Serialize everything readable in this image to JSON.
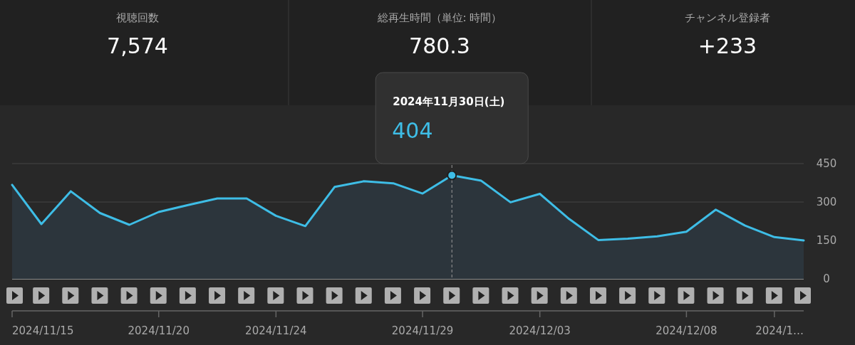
{
  "chart_data": {
    "type": "area",
    "color": "#3ebde6",
    "x": [
      "2024-11-15",
      "2024-11-16",
      "2024-11-17",
      "2024-11-18",
      "2024-11-19",
      "2024-11-20",
      "2024-11-21",
      "2024-11-22",
      "2024-11-23",
      "2024-11-24",
      "2024-11-25",
      "2024-11-26",
      "2024-11-27",
      "2024-11-28",
      "2024-11-29",
      "2024-11-30",
      "2024-12-01",
      "2024-12-02",
      "2024-12-03",
      "2024-12-04",
      "2024-12-05",
      "2024-12-06",
      "2024-12-07",
      "2024-12-08",
      "2024-12-09",
      "2024-12-10",
      "2024-12-11",
      "2024-12-12"
    ],
    "values": [
      367,
      214,
      342,
      257,
      211,
      261,
      288,
      314,
      314,
      246,
      206,
      359,
      381,
      373,
      333,
      404,
      383,
      299,
      332,
      234,
      151,
      157,
      166,
      184,
      270,
      208,
      163,
      150
    ],
    "value_labels": [
      null,
      null,
      null,
      null,
      null,
      null,
      null,
      null,
      null,
      null,
      null,
      null,
      null,
      null,
      null,
      "404",
      null,
      null,
      null,
      null,
      null,
      null,
      null,
      null,
      null,
      null,
      null,
      null
    ],
    "xlim": [
      "2024-11-15",
      "2024-12-12"
    ],
    "xticks": [
      {
        "value": "2024-11-15",
        "label": "2024/11/15"
      },
      {
        "value": "2024-11-20",
        "label": "2024/11/20"
      },
      {
        "value": "2024-11-24",
        "label": "2024/11/24"
      },
      {
        "value": "2024-11-29",
        "label": "2024/11/29"
      },
      {
        "value": "2024-12-03",
        "label": "2024/12/03"
      },
      {
        "value": "2024-12-08",
        "label": "2024/12/08"
      },
      {
        "value": "2024-12-11",
        "label": "2024/1…"
      }
    ],
    "ylim": [
      0,
      450
    ],
    "yticks": [
      0,
      150,
      300,
      450
    ],
    "grid": "y",
    "ref_lines": [
      {
        "axis": "x",
        "value": "2024-11-30",
        "line_style": "dashed",
        "color": "#9a9a9a"
      }
    ],
    "annotations": [
      "視聴回数",
      "7,574",
      "総再生時間（単位: 時間）",
      "780.3",
      "チャンネル登録者",
      "+233",
      "2024年11月30日(土)"
    ]
  }
}
